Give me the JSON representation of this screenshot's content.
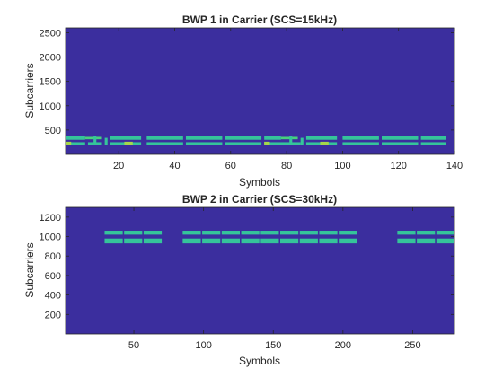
{
  "colors": {
    "background": "#3b2e9e",
    "block_primary": "#35c49a",
    "block_secondary": "#47d27b",
    "block_highlight": "#a6d74a",
    "axis": "#262626"
  },
  "chart_data": [
    {
      "type": "heatmap",
      "title": "BWP 1 in Carrier (SCS=15kHz)",
      "xlabel": "Symbols",
      "ylabel": "Subcarriers",
      "xlim": [
        1,
        140
      ],
      "ylim": [
        0,
        2600
      ],
      "xticks": [
        20,
        40,
        60,
        80,
        100,
        120,
        140
      ],
      "yticks": [
        500,
        1000,
        1500,
        2000,
        2500
      ],
      "background_value": 0,
      "blocks": [
        {
          "x": [
            1,
            8
          ],
          "y": [
            300,
            370
          ],
          "level": "primary"
        },
        {
          "x": [
            1,
            8
          ],
          "y": [
            190,
            250
          ],
          "level": "primary"
        },
        {
          "x": [
            8,
            14
          ],
          "y": [
            310,
            360
          ],
          "level": "secondary"
        },
        {
          "x": [
            9,
            14
          ],
          "y": [
            190,
            250
          ],
          "level": "primary"
        },
        {
          "x": [
            1,
            3
          ],
          "y": [
            190,
            260
          ],
          "level": "highlight"
        },
        {
          "x": [
            11,
            12
          ],
          "y": [
            190,
            370
          ],
          "level": "primary"
        },
        {
          "x": [
            15,
            16
          ],
          "y": [
            200,
            340
          ],
          "level": "primary"
        },
        {
          "x": [
            17,
            28
          ],
          "y": [
            300,
            370
          ],
          "level": "primary"
        },
        {
          "x": [
            17,
            28
          ],
          "y": [
            190,
            250
          ],
          "level": "primary"
        },
        {
          "x": [
            22,
            25
          ],
          "y": [
            190,
            260
          ],
          "level": "highlight"
        },
        {
          "x": [
            30,
            43
          ],
          "y": [
            300,
            370
          ],
          "level": "primary"
        },
        {
          "x": [
            30,
            43
          ],
          "y": [
            190,
            250
          ],
          "level": "primary"
        },
        {
          "x": [
            44,
            57
          ],
          "y": [
            300,
            370
          ],
          "level": "primary"
        },
        {
          "x": [
            44,
            57
          ],
          "y": [
            190,
            250
          ],
          "level": "primary"
        },
        {
          "x": [
            58,
            71
          ],
          "y": [
            300,
            370
          ],
          "level": "primary"
        },
        {
          "x": [
            58,
            71
          ],
          "y": [
            190,
            250
          ],
          "level": "primary"
        },
        {
          "x": [
            72,
            78
          ],
          "y": [
            300,
            370
          ],
          "level": "primary"
        },
        {
          "x": [
            72,
            85
          ],
          "y": [
            190,
            250
          ],
          "level": "primary"
        },
        {
          "x": [
            78,
            84
          ],
          "y": [
            310,
            360
          ],
          "level": "secondary"
        },
        {
          "x": [
            72,
            74
          ],
          "y": [
            190,
            260
          ],
          "level": "highlight"
        },
        {
          "x": [
            81,
            82
          ],
          "y": [
            190,
            370
          ],
          "level": "primary"
        },
        {
          "x": [
            85,
            86
          ],
          "y": [
            200,
            340
          ],
          "level": "primary"
        },
        {
          "x": [
            87,
            98
          ],
          "y": [
            300,
            370
          ],
          "level": "primary"
        },
        {
          "x": [
            87,
            98
          ],
          "y": [
            190,
            250
          ],
          "level": "primary"
        },
        {
          "x": [
            92,
            95
          ],
          "y": [
            190,
            260
          ],
          "level": "highlight"
        },
        {
          "x": [
            100,
            113
          ],
          "y": [
            300,
            370
          ],
          "level": "primary"
        },
        {
          "x": [
            100,
            113
          ],
          "y": [
            190,
            250
          ],
          "level": "primary"
        },
        {
          "x": [
            114,
            127
          ],
          "y": [
            300,
            370
          ],
          "level": "primary"
        },
        {
          "x": [
            114,
            127
          ],
          "y": [
            190,
            250
          ],
          "level": "primary"
        },
        {
          "x": [
            128,
            137
          ],
          "y": [
            300,
            370
          ],
          "level": "primary"
        },
        {
          "x": [
            128,
            137
          ],
          "y": [
            190,
            250
          ],
          "level": "primary"
        }
      ]
    },
    {
      "type": "heatmap",
      "title": "BWP 2 in Carrier (SCS=30kHz)",
      "xlabel": "Symbols",
      "ylabel": "Subcarriers",
      "xlim": [
        1,
        280
      ],
      "ylim": [
        0,
        1300
      ],
      "xticks": [
        50,
        100,
        150,
        200,
        250
      ],
      "yticks": [
        200,
        400,
        600,
        800,
        1000,
        1200
      ],
      "background_value": 0,
      "blocks": [
        {
          "x": [
            29,
            42
          ],
          "y": [
            1020,
            1060
          ],
          "level": "primary"
        },
        {
          "x": [
            29,
            42
          ],
          "y": [
            930,
            980
          ],
          "level": "primary"
        },
        {
          "x": [
            43,
            56
          ],
          "y": [
            1020,
            1060
          ],
          "level": "primary"
        },
        {
          "x": [
            43,
            56
          ],
          "y": [
            930,
            980
          ],
          "level": "primary"
        },
        {
          "x": [
            57,
            70
          ],
          "y": [
            1020,
            1060
          ],
          "level": "primary"
        },
        {
          "x": [
            57,
            70
          ],
          "y": [
            930,
            980
          ],
          "level": "primary"
        },
        {
          "x": [
            85,
            98
          ],
          "y": [
            1020,
            1060
          ],
          "level": "primary"
        },
        {
          "x": [
            85,
            98
          ],
          "y": [
            930,
            980
          ],
          "level": "primary"
        },
        {
          "x": [
            99,
            112
          ],
          "y": [
            1020,
            1060
          ],
          "level": "primary"
        },
        {
          "x": [
            99,
            112
          ],
          "y": [
            930,
            980
          ],
          "level": "primary"
        },
        {
          "x": [
            113,
            126
          ],
          "y": [
            1020,
            1060
          ],
          "level": "primary"
        },
        {
          "x": [
            113,
            126
          ],
          "y": [
            930,
            980
          ],
          "level": "primary"
        },
        {
          "x": [
            127,
            140
          ],
          "y": [
            1020,
            1060
          ],
          "level": "primary"
        },
        {
          "x": [
            127,
            140
          ],
          "y": [
            930,
            980
          ],
          "level": "primary"
        },
        {
          "x": [
            141,
            154
          ],
          "y": [
            1020,
            1060
          ],
          "level": "primary"
        },
        {
          "x": [
            141,
            154
          ],
          "y": [
            930,
            980
          ],
          "level": "primary"
        },
        {
          "x": [
            155,
            168
          ],
          "y": [
            1020,
            1060
          ],
          "level": "primary"
        },
        {
          "x": [
            155,
            168
          ],
          "y": [
            930,
            980
          ],
          "level": "primary"
        },
        {
          "x": [
            169,
            182
          ],
          "y": [
            1020,
            1060
          ],
          "level": "primary"
        },
        {
          "x": [
            169,
            182
          ],
          "y": [
            930,
            980
          ],
          "level": "primary"
        },
        {
          "x": [
            183,
            196
          ],
          "y": [
            1020,
            1060
          ],
          "level": "primary"
        },
        {
          "x": [
            183,
            196
          ],
          "y": [
            930,
            980
          ],
          "level": "primary"
        },
        {
          "x": [
            197,
            210
          ],
          "y": [
            1020,
            1060
          ],
          "level": "primary"
        },
        {
          "x": [
            197,
            210
          ],
          "y": [
            930,
            980
          ],
          "level": "primary"
        },
        {
          "x": [
            239,
            252
          ],
          "y": [
            1020,
            1060
          ],
          "level": "primary"
        },
        {
          "x": [
            239,
            252
          ],
          "y": [
            930,
            980
          ],
          "level": "primary"
        },
        {
          "x": [
            253,
            266
          ],
          "y": [
            1020,
            1060
          ],
          "level": "primary"
        },
        {
          "x": [
            253,
            266
          ],
          "y": [
            930,
            980
          ],
          "level": "primary"
        },
        {
          "x": [
            267,
            280
          ],
          "y": [
            1020,
            1060
          ],
          "level": "primary"
        },
        {
          "x": [
            267,
            280
          ],
          "y": [
            930,
            980
          ],
          "level": "primary"
        }
      ]
    }
  ]
}
